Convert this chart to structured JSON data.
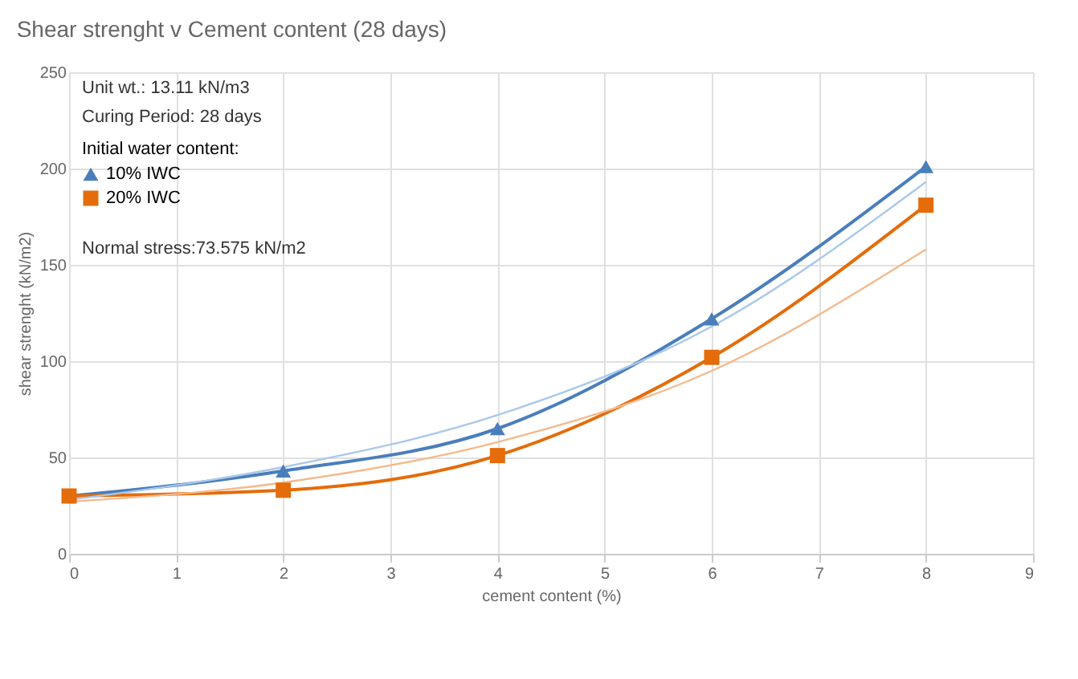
{
  "chart_data": {
    "type": "line",
    "title": "Shear strenght v Cement content (28 days)",
    "xlabel": "cement content (%)",
    "ylabel": "shear strenght (kN/m2)",
    "legend_title": "Initial water content:",
    "annotations": [
      "Unit wt.: 13.11 kN/m3",
      "Curing  Period: 28 days",
      "Normal stress:73.575 kN/m2"
    ],
    "x": [
      0,
      2,
      4,
      6,
      8
    ],
    "series": [
      {
        "name": "10% IWC",
        "color": "#4a7ebb",
        "marker": "triangle",
        "values": [
          30,
          43,
          65,
          122,
          201
        ]
      },
      {
        "name": "20% IWC",
        "color": "#e46c0a",
        "marker": "square",
        "values": [
          30,
          33,
          51,
          102,
          181
        ]
      },
      {
        "color": "#a9c8ea",
        "marker": "none",
        "values": [
          28,
          45,
          72,
          118,
          193
        ]
      },
      {
        "color": "#f4b98c",
        "marker": "none",
        "values": [
          27,
          37,
          58,
          95,
          158
        ]
      }
    ],
    "xlim": [
      0,
      9
    ],
    "xticks": [
      0,
      1,
      2,
      3,
      4,
      5,
      6,
      7,
      8,
      9
    ],
    "ylim": [
      0,
      250
    ],
    "yticks": [
      0,
      50,
      100,
      150,
      200,
      250
    ],
    "grid": true,
    "legend": "top left",
    "line_style": "solid"
  }
}
